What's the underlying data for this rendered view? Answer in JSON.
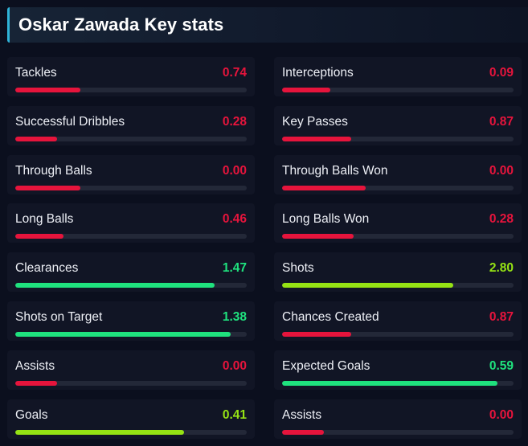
{
  "header": {
    "title": "Oskar Zawada Key stats"
  },
  "colors": {
    "bad": "#e6143c",
    "good": "#1fe27e",
    "mid": "#95e214"
  },
  "stats": [
    {
      "label": "Tackles",
      "value": "0.74",
      "level": "bad",
      "fill": 0.28
    },
    {
      "label": "Interceptions",
      "value": "0.09",
      "level": "bad",
      "fill": 0.21
    },
    {
      "label": "Successful Dribbles",
      "value": "0.28",
      "level": "bad",
      "fill": 0.18
    },
    {
      "label": "Key Passes",
      "value": "0.87",
      "level": "bad",
      "fill": 0.3
    },
    {
      "label": "Through Balls",
      "value": "0.00",
      "level": "bad",
      "fill": 0.28
    },
    {
      "label": "Through Balls Won",
      "value": "0.00",
      "level": "bad",
      "fill": 0.36
    },
    {
      "label": "Long Balls",
      "value": "0.46",
      "level": "bad",
      "fill": 0.21
    },
    {
      "label": "Long Balls Won",
      "value": "0.28",
      "level": "bad",
      "fill": 0.31
    },
    {
      "label": "Clearances",
      "value": "1.47",
      "level": "good",
      "fill": 0.86
    },
    {
      "label": "Shots",
      "value": "2.80",
      "level": "mid",
      "fill": 0.74
    },
    {
      "label": "Shots on Target",
      "value": "1.38",
      "level": "good",
      "fill": 0.93
    },
    {
      "label": "Chances Created",
      "value": "0.87",
      "level": "bad",
      "fill": 0.3
    },
    {
      "label": "Assists",
      "value": "0.00",
      "level": "bad",
      "fill": 0.18
    },
    {
      "label": "Expected Goals",
      "value": "0.59",
      "level": "good",
      "fill": 0.93
    },
    {
      "label": "Goals",
      "value": "0.41",
      "level": "mid",
      "fill": 0.73
    },
    {
      "label": "Assists",
      "value": "0.00",
      "level": "bad",
      "fill": 0.18
    }
  ]
}
